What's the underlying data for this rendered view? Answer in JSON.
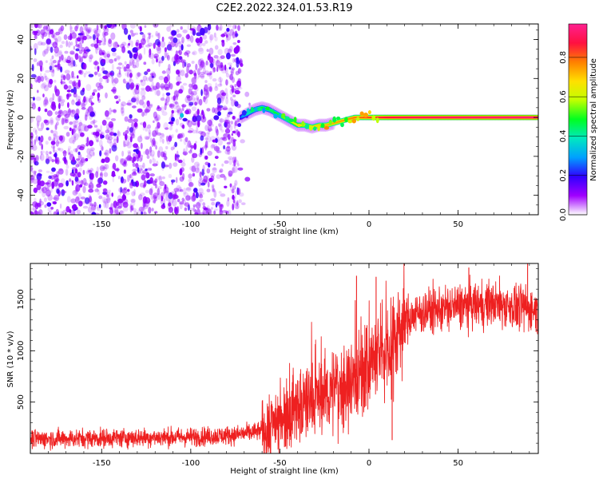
{
  "title": "C2E2.2022.324.01.53.R19",
  "colorbar": {
    "label": "Normalized spectral amplitude",
    "ticks": [
      "0.0",
      "0.2",
      "0.4",
      "0.6",
      "0.8"
    ],
    "tick_values": [
      0.0,
      0.2,
      0.4,
      0.6,
      0.8
    ],
    "range": [
      0.0,
      0.97
    ],
    "colormap": [
      "#ffffff",
      "#a000ff",
      "#3000ff",
      "#00a0ff",
      "#00e8c0",
      "#00ff20",
      "#c0ff00",
      "#ffe000",
      "#ff8000",
      "#ff1040",
      "#ff2090"
    ]
  },
  "chart_data": [
    {
      "type": "heatmap",
      "xlabel": "Height of straight line (km)",
      "ylabel": "Frequency (Hz)",
      "xlim": [
        -190,
        95
      ],
      "ylim": [
        -50,
        48
      ],
      "xticks": [
        -150,
        -100,
        -50,
        0,
        50
      ],
      "xtick_labels": [
        "-150",
        "-100",
        "-50",
        "0",
        "50"
      ],
      "yticks": [
        -40,
        -20,
        0,
        20,
        40
      ],
      "ytick_labels": [
        "-40",
        "-20",
        "0",
        "20",
        "40"
      ],
      "noise_region": {
        "x_range": [
          -190,
          -72
        ],
        "color": "#9000ff"
      },
      "signal_track": {
        "x": [
          -72,
          -68,
          -64,
          -60,
          -56,
          -52,
          -48,
          -44,
          -40,
          -36,
          -32,
          -28,
          -24,
          -20,
          -16,
          -12,
          -8,
          -4,
          0,
          5,
          10,
          20,
          40,
          60,
          80,
          95
        ],
        "frequency_hz": [
          0,
          2,
          4,
          5,
          4,
          2,
          0,
          -2,
          -4,
          -4,
          -5,
          -4,
          -4,
          -3,
          -2,
          -1,
          0,
          0,
          0,
          0,
          0,
          0,
          0,
          0,
          0,
          0
        ],
        "amplitude": [
          0.25,
          0.4,
          0.45,
          0.5,
          0.45,
          0.5,
          0.55,
          0.6,
          0.65,
          0.7,
          0.7,
          0.72,
          0.74,
          0.75,
          0.76,
          0.78,
          0.8,
          0.82,
          0.85,
          0.88,
          0.9,
          0.92,
          0.94,
          0.95,
          0.96,
          0.97
        ]
      }
    },
    {
      "type": "line",
      "xlabel": "Height of straight line (km)",
      "ylabel": "SNR (10 * v/v)",
      "xlim": [
        -190,
        95
      ],
      "ylim": [
        0,
        1850
      ],
      "xticks": [
        -150,
        -100,
        -50,
        0,
        50
      ],
      "xtick_labels": [
        "-150",
        "-100",
        "-50",
        "0",
        "50"
      ],
      "yticks": [
        500,
        1000,
        1500
      ],
      "ytick_labels": [
        "500",
        "1000",
        "1500"
      ],
      "color": "#ee2020",
      "trend": {
        "x": [
          -190,
          -150,
          -100,
          -75,
          -60,
          -50,
          -40,
          -25,
          -10,
          0,
          10,
          15,
          20,
          30,
          50,
          70,
          85,
          95
        ],
        "y": [
          140,
          150,
          160,
          180,
          220,
          380,
          450,
          580,
          700,
          850,
          1050,
          1150,
          1300,
          1380,
          1430,
          1460,
          1420,
          1400
        ]
      },
      "spikes": [
        {
          "x": -7,
          "y": 1730
        },
        {
          "x": 4,
          "y": 1720
        },
        {
          "x": 13,
          "y": 130
        },
        {
          "x": 56,
          "y": 1810
        },
        {
          "x": 89,
          "y": 1870
        }
      ]
    }
  ]
}
